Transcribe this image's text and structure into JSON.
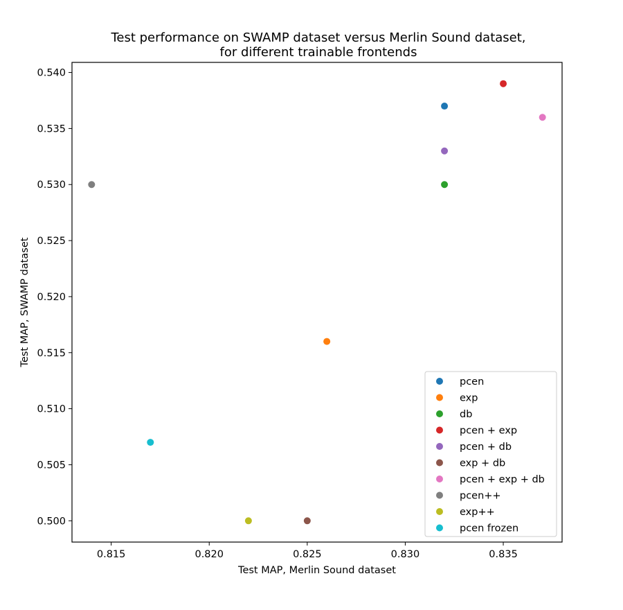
{
  "chart_data": {
    "type": "scatter",
    "title": "Test performance on SWAMP dataset versus Merlin Sound dataset,",
    "subtitle": "for different trainable frontends",
    "xlabel": "Test MAP, Merlin Sound dataset",
    "ylabel": "Test MAP, SWAMP dataset",
    "xlim": [
      0.813,
      0.838
    ],
    "ylim": [
      0.4981,
      0.5409
    ],
    "xticks": [
      "0.815",
      "0.820",
      "0.825",
      "0.830",
      "0.835"
    ],
    "yticks": [
      "0.500",
      "0.505",
      "0.510",
      "0.515",
      "0.520",
      "0.525",
      "0.530",
      "0.535",
      "0.540"
    ],
    "grid": false,
    "legend_position": "lower-right",
    "series": [
      {
        "name": "pcen",
        "color": "#1f77b4",
        "x": 0.832,
        "y": 0.537
      },
      {
        "name": "exp",
        "color": "#ff7f0e",
        "x": 0.826,
        "y": 0.516
      },
      {
        "name": "db",
        "color": "#2ca02c",
        "x": 0.832,
        "y": 0.53
      },
      {
        "name": "pcen + exp",
        "color": "#d62728",
        "x": 0.835,
        "y": 0.539
      },
      {
        "name": "pcen + db",
        "color": "#9467bd",
        "x": 0.832,
        "y": 0.533
      },
      {
        "name": "exp + db",
        "color": "#8c564b",
        "x": 0.825,
        "y": 0.5
      },
      {
        "name": "pcen + exp + db",
        "color": "#e377c2",
        "x": 0.837,
        "y": 0.536
      },
      {
        "name": "pcen++",
        "color": "#7f7f7f",
        "x": 0.814,
        "y": 0.53
      },
      {
        "name": "exp++",
        "color": "#bcbd22",
        "x": 0.822,
        "y": 0.5
      },
      {
        "name": "pcen frozen",
        "color": "#17becf",
        "x": 0.817,
        "y": 0.507
      }
    ]
  }
}
